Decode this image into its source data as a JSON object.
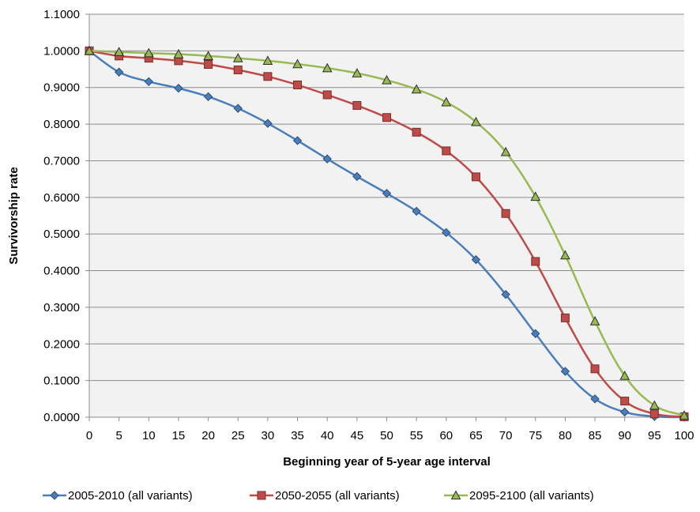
{
  "chart_data": {
    "type": "line",
    "title": "",
    "xlabel": "Beginning year of 5-year age interval",
    "ylabel": "Survivorship rate",
    "x": [
      0,
      5,
      10,
      15,
      20,
      25,
      30,
      35,
      40,
      45,
      50,
      55,
      60,
      65,
      70,
      75,
      80,
      85,
      90,
      95,
      100
    ],
    "xlim": [
      0,
      100
    ],
    "ylim": [
      0,
      1.1
    ],
    "y_ticks": [
      "0.0000",
      "0.1000",
      "0.2000",
      "0.3000",
      "0.4000",
      "0.5000",
      "0.6000",
      "0.7000",
      "0.8000",
      "0.9000",
      "1.0000",
      "1.1000"
    ],
    "grid": true,
    "legend_position": "bottom",
    "series": [
      {
        "name": "2005-2010 (all variants)",
        "color": "#4a7ebb",
        "marker": "diamond",
        "values": [
          1.0,
          0.942,
          0.916,
          0.898,
          0.875,
          0.843,
          0.802,
          0.755,
          0.705,
          0.657,
          0.611,
          0.562,
          0.504,
          0.43,
          0.335,
          0.228,
          0.125,
          0.05,
          0.014,
          0.002,
          0.0
        ]
      },
      {
        "name": "2050-2055 (all variants)",
        "color": "#be4b48",
        "marker": "square",
        "values": [
          1.0,
          0.986,
          0.98,
          0.973,
          0.963,
          0.948,
          0.93,
          0.907,
          0.88,
          0.851,
          0.818,
          0.778,
          0.727,
          0.656,
          0.556,
          0.425,
          0.271,
          0.132,
          0.044,
          0.009,
          0.001
        ]
      },
      {
        "name": "2095-2100 (all variants)",
        "color": "#98b954",
        "marker": "triangle",
        "values": [
          1.0,
          0.997,
          0.994,
          0.991,
          0.986,
          0.98,
          0.973,
          0.964,
          0.953,
          0.939,
          0.92,
          0.895,
          0.86,
          0.806,
          0.724,
          0.602,
          0.442,
          0.262,
          0.113,
          0.032,
          0.005
        ]
      }
    ]
  }
}
